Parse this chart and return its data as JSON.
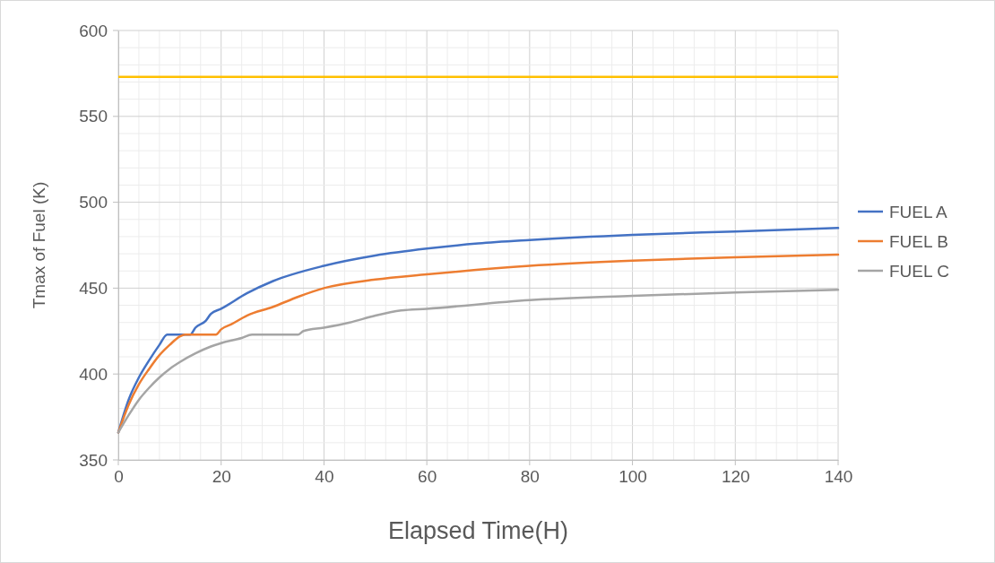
{
  "chart_data": {
    "type": "line",
    "xlabel": "Elapsed Time(H)",
    "ylabel": "Tmax of Fuel (K)",
    "xlim": [
      0,
      140
    ],
    "ylim": [
      350,
      600
    ],
    "xticks": [
      0,
      {
        "value": 4,
        "label": null
      },
      {
        "value": 8,
        "label": null
      },
      {
        "value": 12,
        "label": null
      },
      {
        "value": 16,
        "label": null
      },
      20,
      {
        "value": 24,
        "label": null
      },
      {
        "value": 28,
        "label": null
      },
      {
        "value": 32,
        "label": null
      },
      {
        "value": 36,
        "label": null
      },
      40,
      {
        "value": 44,
        "label": null
      },
      {
        "value": 48,
        "label": null
      },
      {
        "value": 52,
        "label": null
      },
      {
        "value": 56,
        "label": null
      },
      60,
      {
        "value": 64,
        "label": null
      },
      {
        "value": 68,
        "label": null
      },
      {
        "value": 72,
        "label": null
      },
      {
        "value": 76,
        "label": null
      },
      80,
      {
        "value": 84,
        "label": null
      },
      {
        "value": 88,
        "label": null
      },
      {
        "value": 92,
        "label": null
      },
      {
        "value": 96,
        "label": null
      },
      100,
      {
        "value": 104,
        "label": null
      },
      {
        "value": 108,
        "label": null
      },
      {
        "value": 112,
        "label": null
      },
      {
        "value": 116,
        "label": null
      },
      120,
      {
        "value": 124,
        "label": null
      },
      {
        "value": 128,
        "label": null
      },
      {
        "value": 132,
        "label": null
      },
      {
        "value": 136,
        "label": null
      },
      140
    ],
    "yticks": [
      350,
      {
        "value": 360,
        "label": null
      },
      {
        "value": 370,
        "label": null
      },
      {
        "value": 380,
        "label": null
      },
      {
        "value": 390,
        "label": null
      },
      400,
      {
        "value": 410,
        "label": null
      },
      {
        "value": 420,
        "label": null
      },
      {
        "value": 430,
        "label": null
      },
      {
        "value": 440,
        "label": null
      },
      450,
      {
        "value": 460,
        "label": null
      },
      {
        "value": 470,
        "label": null
      },
      {
        "value": 480,
        "label": null
      },
      {
        "value": 490,
        "label": null
      },
      500,
      {
        "value": 510,
        "label": null
      },
      {
        "value": 520,
        "label": null
      },
      {
        "value": 530,
        "label": null
      },
      {
        "value": 540,
        "label": null
      },
      550,
      {
        "value": 560,
        "label": null
      },
      {
        "value": 570,
        "label": null
      },
      {
        "value": 580,
        "label": null
      },
      {
        "value": 590,
        "label": null
      },
      600
    ],
    "grid": true,
    "legend": "right",
    "marker": "none",
    "line_style": "solid",
    "ref_lines": [
      {
        "axis": "y",
        "value": 573,
        "color": "#ffc000"
      }
    ],
    "series": [
      {
        "name": "FUEL A",
        "color": "#4472c4",
        "x": [
          0,
          2,
          4,
          6,
          8,
          9.5,
          14,
          15,
          17,
          18,
          20,
          25,
          30,
          40,
          50,
          60,
          70,
          80,
          100,
          120,
          140
        ],
        "values": [
          366,
          385,
          398,
          408,
          417,
          423,
          423,
          427,
          431,
          435,
          438,
          447,
          454,
          463,
          469,
          473,
          476,
          478,
          481,
          483,
          485
        ]
      },
      {
        "name": "FUEL B",
        "color": "#ed7d31",
        "x": [
          0,
          2,
          4,
          6,
          8,
          10,
          12,
          13,
          19,
          20,
          22,
          25,
          30,
          35,
          40,
          50,
          60,
          80,
          100,
          120,
          140
        ],
        "values": [
          366,
          382,
          394,
          403,
          411,
          417,
          422,
          423,
          423,
          426,
          429,
          434,
          439,
          445,
          450,
          455,
          458,
          463,
          466,
          468,
          469.5
        ]
      },
      {
        "name": "FUEL C",
        "color": "#a5a5a5",
        "x": [
          0,
          2,
          4,
          6,
          8,
          10,
          12,
          15,
          18,
          20,
          24,
          26,
          35,
          36,
          40,
          45,
          50,
          55,
          60,
          80,
          100,
          120,
          140
        ],
        "values": [
          366,
          376,
          385,
          392,
          398,
          403,
          407,
          412,
          416,
          418,
          421,
          423,
          423,
          425,
          427,
          430,
          434,
          437,
          438,
          443,
          445.5,
          447.5,
          449
        ]
      }
    ]
  }
}
